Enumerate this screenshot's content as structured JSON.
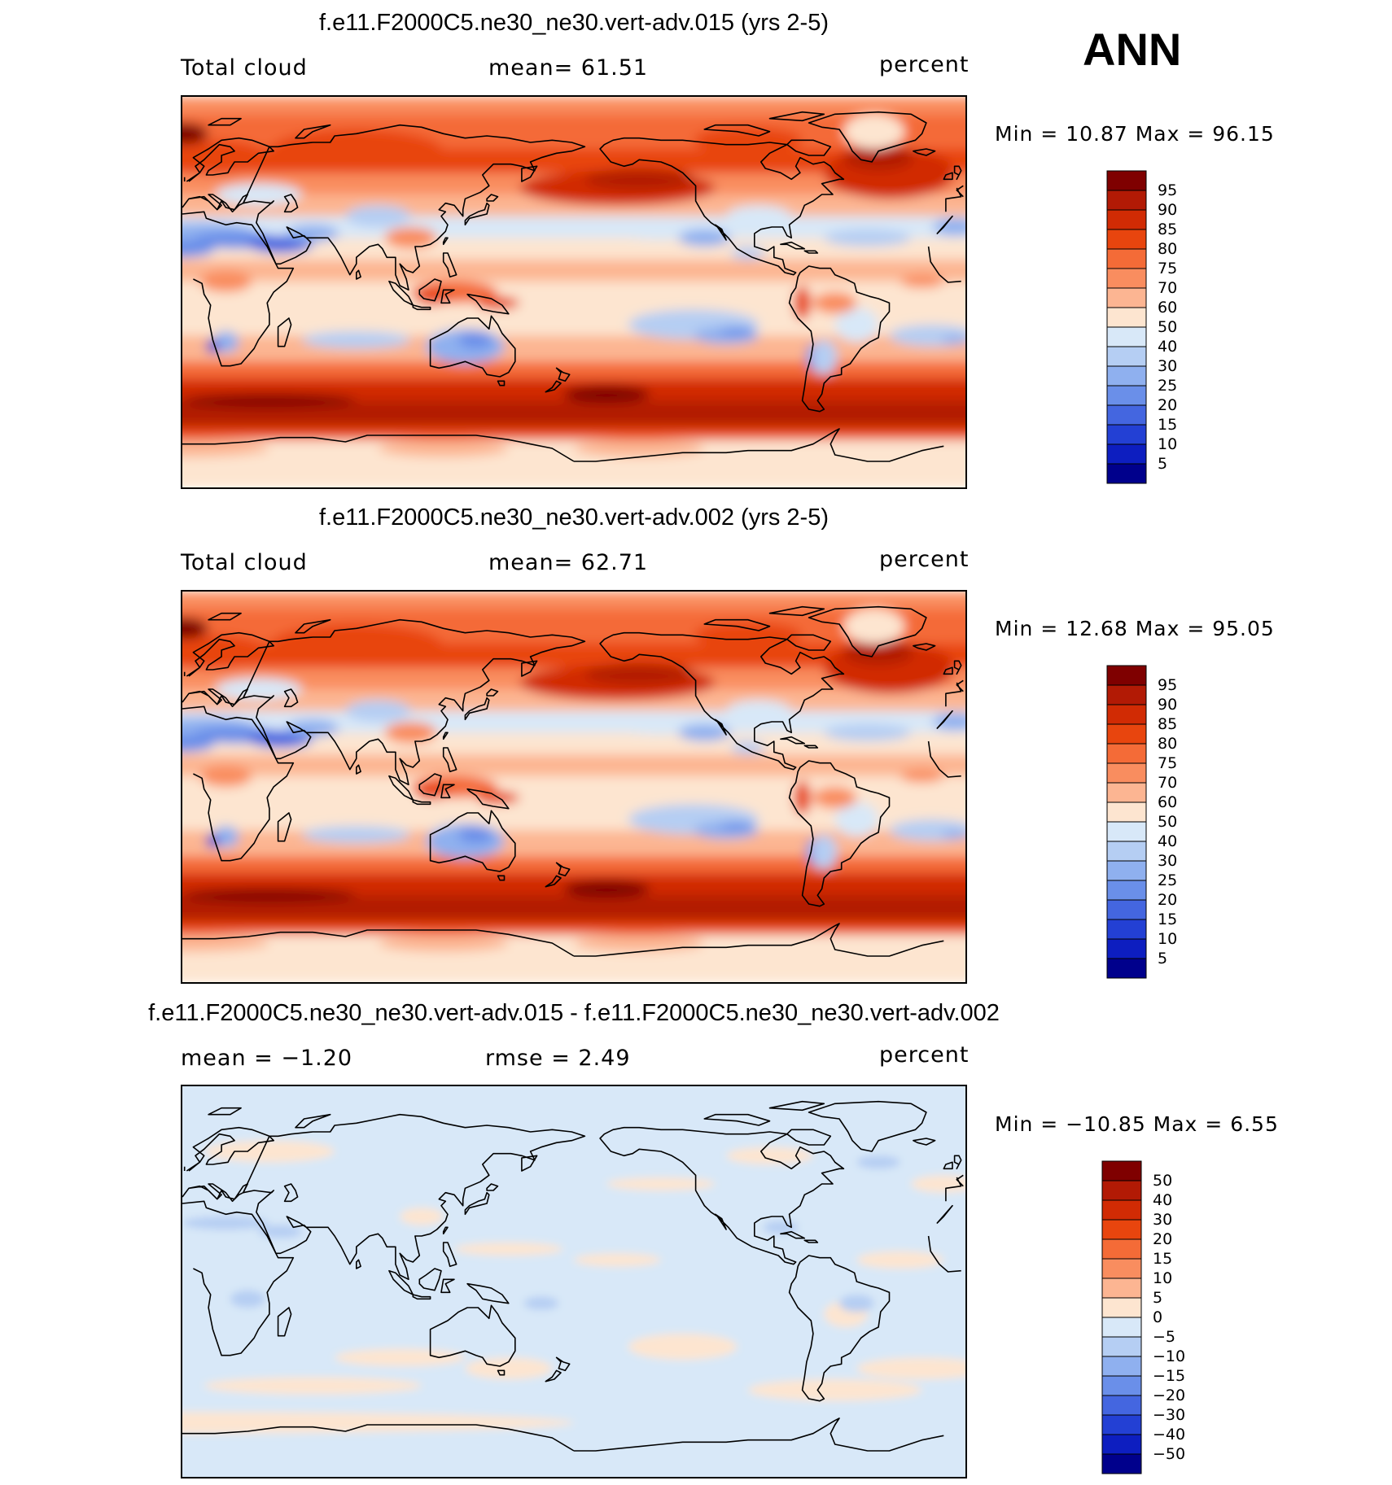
{
  "season": "ANN",
  "panels": [
    {
      "title": "f.e11.F2000C5.ne30_ne30.vert-adv.015 (yrs 2-5)",
      "left_label": "Total cloud",
      "center_label": "mean=   61.51",
      "right_label": "percent",
      "stats": "Min =   10.87 Max =   96.15",
      "kind": "abs",
      "colorbar": {
        "labels": [
          "95",
          "90",
          "85",
          "80",
          "75",
          "70",
          "60",
          "50",
          "40",
          "30",
          "25",
          "20",
          "15",
          "10",
          "5"
        ],
        "colors": [
          "#7f0000",
          "#b21a05",
          "#d12b04",
          "#e8450e",
          "#f46b37",
          "#f98d5f",
          "#fcb592",
          "#fde5d0",
          "#d8e8f8",
          "#b5cef3",
          "#8fb0ef",
          "#6a8fe9",
          "#4466e0",
          "#2340d4",
          "#0d1ec0",
          "#00008c"
        ]
      },
      "mean_value": 61.51,
      "min_value": 10.87,
      "max_value": 96.15
    },
    {
      "title": "f.e11.F2000C5.ne30_ne30.vert-adv.002 (yrs 2-5)",
      "left_label": "Total cloud",
      "center_label": "mean=   62.71",
      "right_label": "percent",
      "stats": "Min =   12.68 Max =   95.05",
      "kind": "abs",
      "colorbar": {
        "labels": [
          "95",
          "90",
          "85",
          "80",
          "75",
          "70",
          "60",
          "50",
          "40",
          "30",
          "25",
          "20",
          "15",
          "10",
          "5"
        ],
        "colors": [
          "#7f0000",
          "#b21a05",
          "#d12b04",
          "#e8450e",
          "#f46b37",
          "#f98d5f",
          "#fcb592",
          "#fde5d0",
          "#d8e8f8",
          "#b5cef3",
          "#8fb0ef",
          "#6a8fe9",
          "#4466e0",
          "#2340d4",
          "#0d1ec0",
          "#00008c"
        ]
      },
      "mean_value": 62.71,
      "min_value": 12.68,
      "max_value": 95.05
    },
    {
      "title": "f.e11.F2000C5.ne30_ne30.vert-adv.015 - f.e11.F2000C5.ne30_ne30.vert-adv.002",
      "left_label": "mean =   −1.20",
      "center_label": "rmse =    2.49",
      "right_label": "percent",
      "stats": "Min = −10.85 Max =    6.55",
      "kind": "diff",
      "colorbar": {
        "labels": [
          "50",
          "40",
          "30",
          "20",
          "15",
          "10",
          "5",
          "0",
          "−5",
          "−10",
          "−15",
          "−20",
          "−30",
          "−40",
          "−50"
        ],
        "colors": [
          "#7f0000",
          "#b21a05",
          "#d12b04",
          "#e8450e",
          "#f46b37",
          "#f98d5f",
          "#fcb592",
          "#fde5d0",
          "#d8e8f8",
          "#b5cef3",
          "#8fb0ef",
          "#6a8fe9",
          "#4466e0",
          "#2340d4",
          "#0d1ec0",
          "#00008c"
        ]
      },
      "mean_value": -1.2,
      "rmse_value": 2.49,
      "min_value": -10.85,
      "max_value": 6.55
    }
  ]
}
